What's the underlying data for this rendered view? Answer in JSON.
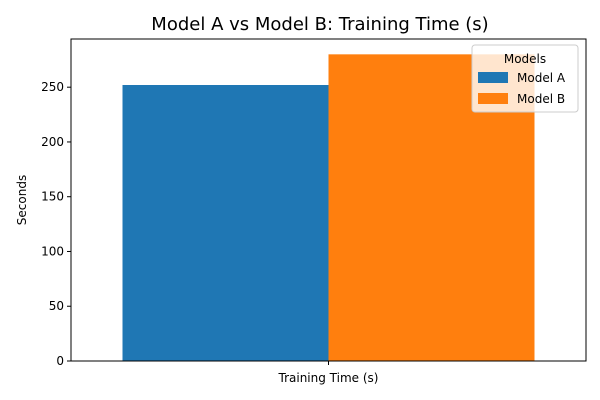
{
  "chart_data": {
    "type": "bar",
    "title": "Model A vs Model B: Training Time (s)",
    "xlabel": "",
    "ylabel": "Seconds",
    "categories": [
      "Training Time (s)"
    ],
    "series": [
      {
        "name": "Model A",
        "values": [
          252
        ],
        "color": "#1f77b4"
      },
      {
        "name": "Model B",
        "values": [
          280
        ],
        "color": "#ff7f0e"
      }
    ],
    "ylim": [
      0,
      294
    ],
    "yticks": [
      0,
      50,
      100,
      150,
      200,
      250
    ],
    "legend": {
      "title": "Models",
      "placement": "top-right"
    },
    "grid": false
  }
}
